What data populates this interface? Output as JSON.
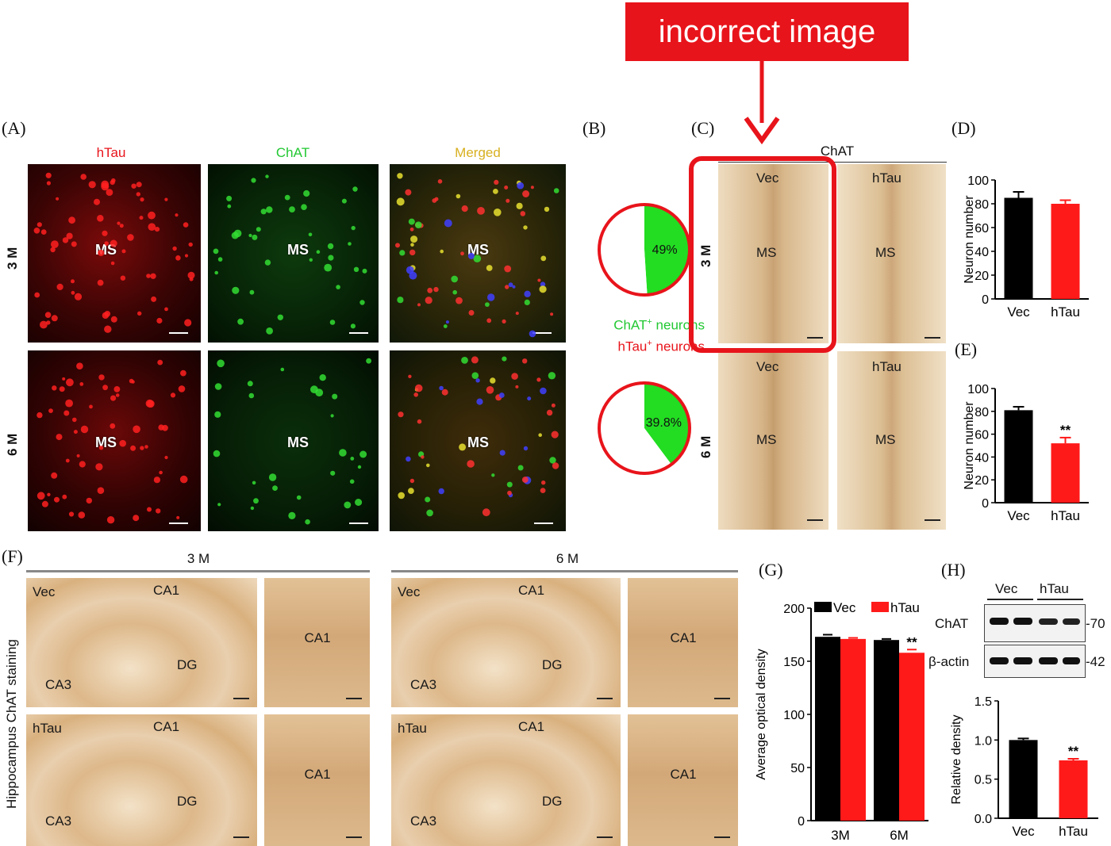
{
  "callout": {
    "label": "incorrect image",
    "color": "#e8141b"
  },
  "panel_labels": {
    "a": "(A)",
    "b": "(B)",
    "c": "(C)",
    "d": "(D)",
    "e": "(E)",
    "f": "(F)",
    "g": "(G)",
    "h": "(H)"
  },
  "panel_a": {
    "columns": [
      "hTau",
      "ChAT",
      "Merged"
    ],
    "column_colors": [
      "#e8141b",
      "#22c832",
      "#d8b020"
    ],
    "rows": [
      "3 M",
      "6 M"
    ],
    "region": "MS"
  },
  "panel_b": {
    "legend_chat": "ChAT",
    "legend_htau": "hTau",
    "legend_sup": "+",
    "legend_suffix": " neurons"
  },
  "panel_c": {
    "header": "ChAT",
    "rows": [
      "3 M",
      "6 M"
    ],
    "columns": [
      "Vec",
      "hTau"
    ],
    "region": "MS"
  },
  "panel_f": {
    "ylabel": "Hippocampus ChAT staining",
    "groups": [
      "3 M",
      "6 M"
    ],
    "conditions": [
      "Vec",
      "hTau"
    ],
    "regions": {
      "ca1": "CA1",
      "ca3": "CA3",
      "dg": "DG"
    }
  },
  "panel_h_blot": {
    "lanes": [
      "Vec",
      "hTau"
    ],
    "bands": [
      "ChAT",
      "β-actin"
    ],
    "markers": [
      "-70",
      "-42"
    ]
  },
  "chart_data": [
    {
      "id": "B-3M",
      "type": "pie",
      "slices": [
        {
          "label": "49%",
          "value": 49,
          "color": "#22dd22"
        },
        {
          "label": "",
          "value": 51,
          "color": "#ffffff"
        }
      ]
    },
    {
      "id": "B-6M",
      "type": "pie",
      "slices": [
        {
          "label": "39.8%",
          "value": 39.8,
          "color": "#22dd22"
        },
        {
          "label": "",
          "value": 60.2,
          "color": "#ffffff"
        }
      ]
    },
    {
      "id": "D",
      "type": "bar",
      "categories": [
        "Vec",
        "hTau"
      ],
      "values": [
        85,
        80
      ],
      "errors": [
        5,
        3
      ],
      "colors": [
        "#000000",
        "#ff1a1a"
      ],
      "ylabel": "Neuron number",
      "ylim": [
        0,
        100
      ],
      "yticks": [
        0,
        20,
        40,
        60,
        80,
        100
      ],
      "sig": [
        "",
        ""
      ]
    },
    {
      "id": "E",
      "type": "bar",
      "categories": [
        "Vec",
        "hTau"
      ],
      "values": [
        81,
        52
      ],
      "errors": [
        3,
        5
      ],
      "colors": [
        "#000000",
        "#ff1a1a"
      ],
      "ylabel": "Neuron number",
      "ylim": [
        0,
        100
      ],
      "yticks": [
        0,
        20,
        40,
        60,
        80,
        100
      ],
      "sig": [
        "",
        "**"
      ]
    },
    {
      "id": "G",
      "type": "bar",
      "categories": [
        "3M",
        "6M"
      ],
      "series": [
        {
          "name": "Vec",
          "values": [
            173,
            170
          ],
          "errors": [
            2,
            1
          ],
          "color": "#000000"
        },
        {
          "name": "hTau",
          "values": [
            171,
            158
          ],
          "errors": [
            1,
            3
          ],
          "color": "#ff1a1a"
        }
      ],
      "ylabel": "Average optical density",
      "ylim": [
        0,
        200
      ],
      "yticks": [
        0,
        50,
        100,
        150,
        200
      ],
      "sig": [
        "",
        "**"
      ]
    },
    {
      "id": "H",
      "type": "bar",
      "categories": [
        "Vec",
        "hTau"
      ],
      "values": [
        1.0,
        0.74
      ],
      "errors": [
        0.02,
        0.02
      ],
      "colors": [
        "#000000",
        "#ff1a1a"
      ],
      "ylabel": "Relative density",
      "ylim": [
        0,
        1.5
      ],
      "yticks": [
        0.0,
        0.5,
        1.0,
        1.5
      ],
      "sig": [
        "",
        "**"
      ]
    }
  ]
}
